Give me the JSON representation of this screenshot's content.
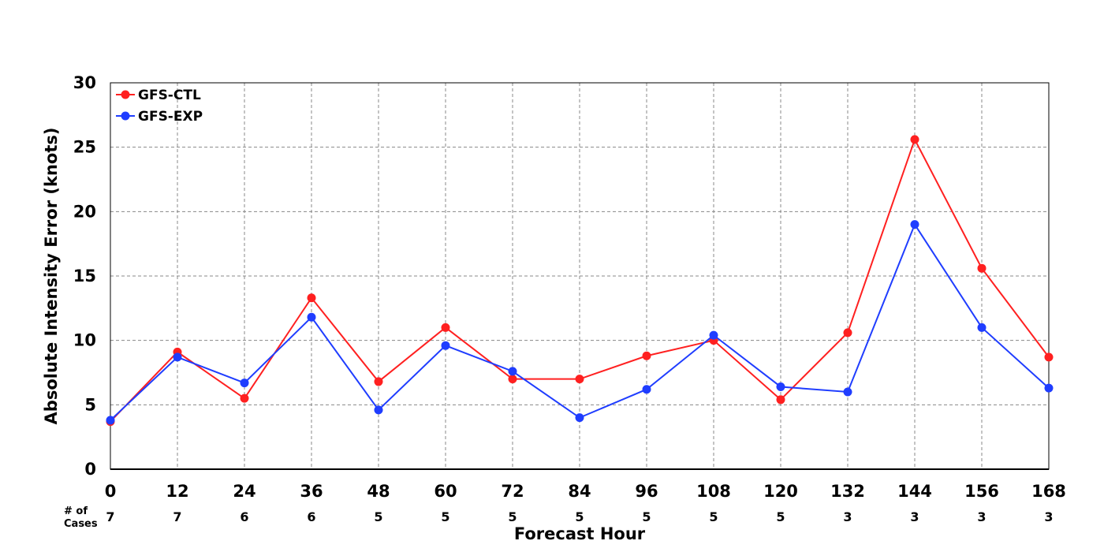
{
  "chart_data": {
    "type": "line",
    "xlabel": "Forecast Hour",
    "ylabel": "Absolute Intensity Error (knots)",
    "x": [
      0,
      12,
      24,
      36,
      48,
      60,
      72,
      84,
      96,
      108,
      120,
      132,
      144,
      156,
      168
    ],
    "xlim": [
      0,
      168
    ],
    "ylim": [
      0,
      30
    ],
    "yticks": [
      0,
      5,
      10,
      15,
      20,
      25,
      30
    ],
    "grid": true,
    "legend_position": "top-left",
    "series": [
      {
        "name": "GFS-CTL",
        "color": "#ff2020",
        "values": [
          3.7,
          9.1,
          5.5,
          13.3,
          6.8,
          11.0,
          7.0,
          7.0,
          8.8,
          10.0,
          5.4,
          10.6,
          25.6,
          15.6,
          8.7
        ]
      },
      {
        "name": "GFS-EXP",
        "color": "#1f3dff",
        "values": [
          3.8,
          8.7,
          6.7,
          11.8,
          4.6,
          9.6,
          7.6,
          4.0,
          6.2,
          10.4,
          6.4,
          6.0,
          19.0,
          11.0,
          6.3
        ]
      }
    ],
    "cases_label_line1": "# of",
    "cases_label_line2": "Cases",
    "cases": [
      7,
      7,
      6,
      6,
      5,
      5,
      5,
      5,
      5,
      5,
      5,
      3,
      3,
      3,
      3
    ]
  }
}
